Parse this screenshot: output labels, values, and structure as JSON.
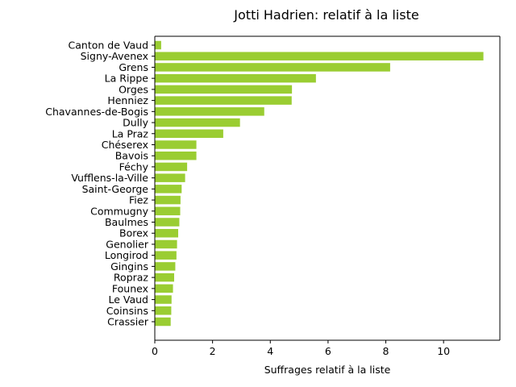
{
  "chart_data": {
    "type": "bar",
    "orientation": "horizontal",
    "title": "Jotti Hadrien: relatif à la liste",
    "xlabel": "Suffrages relatif à la liste",
    "ylabel": "",
    "xlim": [
      0,
      11.95
    ],
    "xticks": [
      0,
      2,
      4,
      6,
      8,
      10
    ],
    "grid": false,
    "bar_color": "#9acd32",
    "categories": [
      "Canton de Vaud",
      "Signy-Avenex",
      "Grens",
      "La Rippe",
      "Orges",
      "Henniez",
      "Chavannes-de-Bogis",
      "Dully",
      "La Praz",
      "Chéserex",
      "Bavois",
      "Féchy",
      "Vufflens-la-Ville",
      "Saint-George",
      "Fiez",
      "Commugny",
      "Baulmes",
      "Borex",
      "Genolier",
      "Longirod",
      "Gingins",
      "Ropraz",
      "Founex",
      "Le Vaud",
      "Coinsins",
      "Crassier"
    ],
    "values": [
      0.22,
      11.38,
      8.15,
      5.58,
      4.75,
      4.74,
      3.79,
      2.95,
      2.37,
      1.44,
      1.44,
      1.12,
      1.05,
      0.93,
      0.89,
      0.88,
      0.85,
      0.81,
      0.77,
      0.75,
      0.71,
      0.67,
      0.63,
      0.58,
      0.57,
      0.55
    ]
  }
}
